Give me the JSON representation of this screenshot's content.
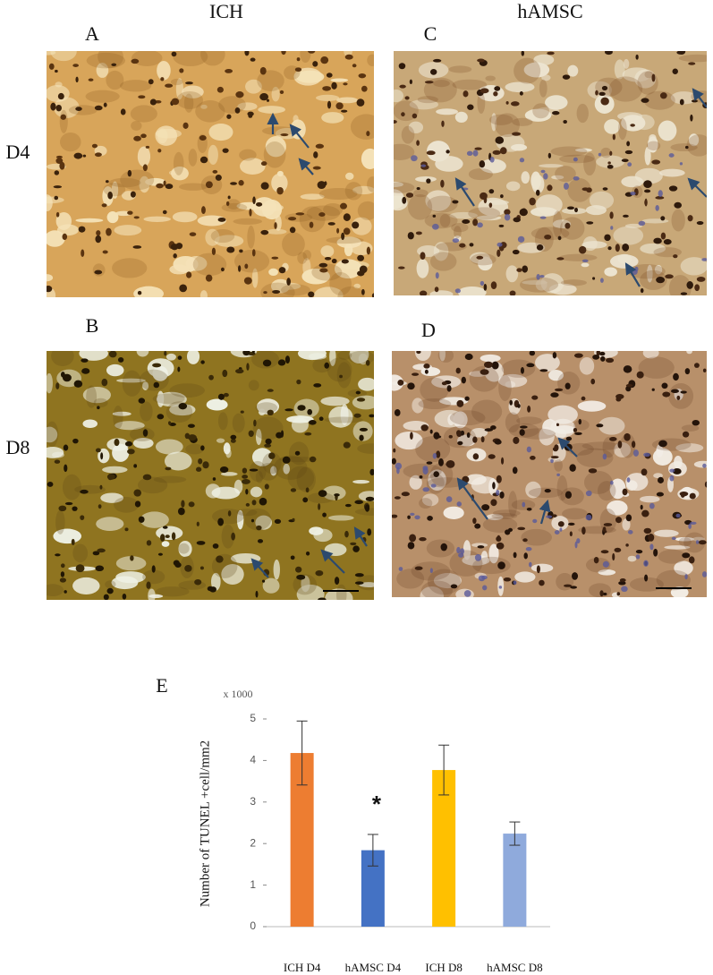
{
  "figure": {
    "column_labels": [
      "ICH",
      "hAMSC"
    ],
    "row_labels": [
      "D4",
      "D8"
    ],
    "panel_labels": [
      "A",
      "C",
      "B",
      "D"
    ]
  },
  "chart_data": {
    "type": "bar",
    "panel_label": "E",
    "scale_note": "x 1000",
    "ylabel": "Number of TUNEL +cell/mm2",
    "categories": [
      "ICH D4",
      "hAMSC D4",
      "ICH D8",
      "hAMSC D8"
    ],
    "values": [
      4.18,
      1.84,
      3.77,
      2.24
    ],
    "errors": [
      0.77,
      0.38,
      0.6,
      0.28
    ],
    "colors": [
      "#ed7d31",
      "#4472c4",
      "#ffc000",
      "#8faadc"
    ],
    "annotation": "*",
    "ylim": [
      0,
      5
    ],
    "yticks": [
      0,
      1,
      2,
      3,
      4,
      5
    ]
  }
}
